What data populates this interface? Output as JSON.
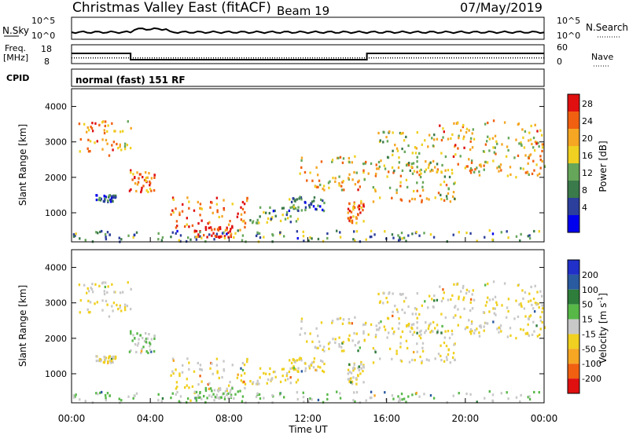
{
  "header": {
    "title": "Christmas Valley East (fitACF)",
    "beam": "Beam 19",
    "date": "07/May/2019"
  },
  "summary_panels": {
    "nsky_label": "N.Sky",
    "nsky_ticks": [
      "10^5",
      "10^0"
    ],
    "nsearch_label": "N.Search",
    "nsearch_ticks": [
      "10^5",
      "10^0"
    ],
    "freq_label_line1": "Freq.",
    "freq_label_line2": "[MHz]",
    "freq_ticks": [
      "18",
      "8"
    ],
    "nave_label": "Nave",
    "nave_ticks": [
      "60",
      "0"
    ],
    "cpid_label": "CPID",
    "cpid_text": "normal (fast) 151 RF"
  },
  "axes": {
    "ylabel": "Slant Range [km]",
    "xlabel": "Time UT",
    "y_ticks": [
      "4000",
      "3000",
      "2000",
      "1000"
    ],
    "x_ticks": [
      "00:00",
      "04:00",
      "08:00",
      "12:00",
      "16:00",
      "20:00",
      "00:00"
    ]
  },
  "colorbars": {
    "power_label": "Power [dB]",
    "power_ticks": [
      "28",
      "24",
      "20",
      "16",
      "12",
      "8",
      "4"
    ],
    "power_colors": [
      "#0000ee",
      "#2c3f9c",
      "#3b7a4a",
      "#66a65a",
      "#f0d020",
      "#f5a623",
      "#f06010",
      "#e01010"
    ],
    "velocity_label": "Velocity [m s",
    "velocity_label_sup": "-1",
    "velocity_label_end": "]",
    "velocity_ticks": [
      "200",
      "100",
      "50",
      "15",
      "-15",
      "-50",
      "-100",
      "-200"
    ],
    "velocity_colors": [
      "#2030c8",
      "#2a5aa0",
      "#2e7d3a",
      "#57b848",
      "#c8c8c8",
      "#f0d020",
      "#f5a623",
      "#f06010",
      "#e01010"
    ]
  },
  "chart_data": {
    "type": "heatmap",
    "x_range_hours": [
      0,
      24
    ],
    "y_range_km": [
      180,
      4500
    ],
    "frequency_mhz": {
      "segments": [
        {
          "start": "00:00",
          "end": "03:00",
          "value": 14
        },
        {
          "start": "03:00",
          "end": "15:00",
          "value": 10
        },
        {
          "start": "15:00",
          "end": "24:00",
          "value": 14
        }
      ],
      "ylim": [
        8,
        18
      ]
    },
    "nave": {
      "value": 18,
      "ylim": [
        0,
        60
      ]
    },
    "echo_regions": [
      {
        "t": [
          0.1,
          3.0
        ],
        "r": [
          2600,
          3600
        ],
        "power_db": 22,
        "velocity": -15
      },
      {
        "t": [
          2.9,
          4.2
        ],
        "r": [
          1550,
          2200
        ],
        "power_db": 24,
        "velocity": 15
      },
      {
        "t": [
          1.2,
          2.2
        ],
        "r": [
          1300,
          1500
        ],
        "power_db": 8,
        "velocity": -15
      },
      {
        "t": [
          5.0,
          9.0
        ],
        "r": [
          500,
          1450
        ],
        "power_db": 24,
        "velocity": -15
      },
      {
        "t": [
          6.2,
          8.2
        ],
        "r": [
          300,
          600
        ],
        "power_db": 28,
        "velocity": 15
      },
      {
        "t": [
          9.0,
          11.5
        ],
        "r": [
          700,
          1200
        ],
        "power_db": 12,
        "velocity": -15
      },
      {
        "t": [
          11.0,
          12.8
        ],
        "r": [
          1050,
          1450
        ],
        "power_db": 10,
        "velocity": -15
      },
      {
        "t": [
          11.5,
          15.0
        ],
        "r": [
          1600,
          2600
        ],
        "power_db": 20,
        "velocity": -15
      },
      {
        "t": [
          14.0,
          14.8
        ],
        "r": [
          700,
          1350
        ],
        "power_db": 24,
        "velocity": -15
      },
      {
        "t": [
          15.0,
          19.5
        ],
        "r": [
          1300,
          2400
        ],
        "power_db": 18,
        "velocity": -15
      },
      {
        "t": [
          15.5,
          18.5
        ],
        "r": [
          2100,
          3300
        ],
        "power_db": 16,
        "velocity": -15
      },
      {
        "t": [
          18.5,
          24.0
        ],
        "r": [
          2000,
          3600
        ],
        "power_db": 20,
        "velocity": -15
      },
      {
        "t": [
          0.0,
          24.0
        ],
        "r": [
          180,
          500
        ],
        "power_db": 12,
        "velocity": 15
      }
    ]
  }
}
